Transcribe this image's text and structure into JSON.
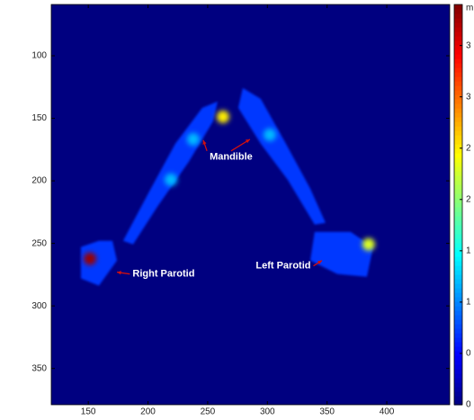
{
  "chart_data": {
    "type": "image",
    "xlim": [
      119,
      452.7
    ],
    "ylim": [
      59,
      379
    ],
    "y_inverted": true,
    "xticks": [
      150,
      200,
      250,
      300,
      350,
      400
    ],
    "yticks": [
      100,
      150,
      200,
      250,
      300,
      350
    ],
    "background_value": 0,
    "clim": [
      0,
      3.9
    ],
    "colormap": "jet",
    "colorbar_ticks": [
      {
        "value": 0,
        "label": "0"
      },
      {
        "value": 0.5,
        "label": "0"
      },
      {
        "value": 1,
        "label": "1"
      },
      {
        "value": 1.5,
        "label": "1"
      },
      {
        "value": 2,
        "label": "2"
      },
      {
        "value": 2.5,
        "label": "2"
      },
      {
        "value": 3,
        "label": "3"
      },
      {
        "value": 3.5,
        "label": "3"
      }
    ],
    "colorbar_label": "m",
    "regions": [
      {
        "value": 0.7,
        "x": [
          245.5,
          258.3,
          254.5,
          234.2,
          207.9,
          187.5,
          179.2,
          200.3,
          222.9
        ],
        "y": [
          141.6,
          136.6,
          152.4,
          184.7,
          220.6,
          250.8,
          247.9,
          209.9,
          170.3
        ]
      },
      {
        "value": 0.7,
        "x": [
          279.4,
          294.4,
          315.5,
          335.9,
          348.7,
          339.6,
          317.0,
          294.4,
          275.6
        ],
        "y": [
          125.8,
          134.4,
          170.3,
          206.2,
          233.6,
          235.0,
          199.1,
          170.3,
          141.6
        ]
      },
      {
        "value": 0.7,
        "x": [
          143.8,
          158.9,
          170.2,
          174.0,
          158.9,
          143.8
        ],
        "y": [
          252.9,
          247.9,
          247.9,
          263.7,
          283.8,
          278.1
        ]
      },
      {
        "value": 0.7,
        "x": [
          339.6,
          369.7,
          388.6,
          383.3,
          358.5,
          335.9
        ],
        "y": [
          240.8,
          240.8,
          253.0,
          276.7,
          274.5,
          263.7
        ]
      }
    ],
    "spots": {
      "x": [
        262.8,
        151.4,
        384.8,
        237.9,
        302,
        219.2
      ],
      "y": [
        148.8,
        262.3,
        250.8,
        166.8,
        163.2,
        199.1
      ],
      "values": [
        2.5,
        3.8,
        2.3,
        1.2,
        1.2,
        1.2
      ]
    },
    "annotations": [
      {
        "text": "Mandible",
        "x": 269.6,
        "y": 181.1,
        "arrows": [
          {
            "x": 246.3,
            "y": 167.5
          },
          {
            "x": 285.4,
            "y": 166.8
          }
        ]
      },
      {
        "text": "Right Parotid",
        "x": 213.1,
        "y": 274.5,
        "arrows": [
          {
            "x": 174,
            "y": 273
          }
        ]
      },
      {
        "text": "Left Parotid",
        "x": 313.3,
        "y": 268,
        "arrows": [
          {
            "x": 345.7,
            "y": 263.7
          }
        ]
      }
    ]
  }
}
